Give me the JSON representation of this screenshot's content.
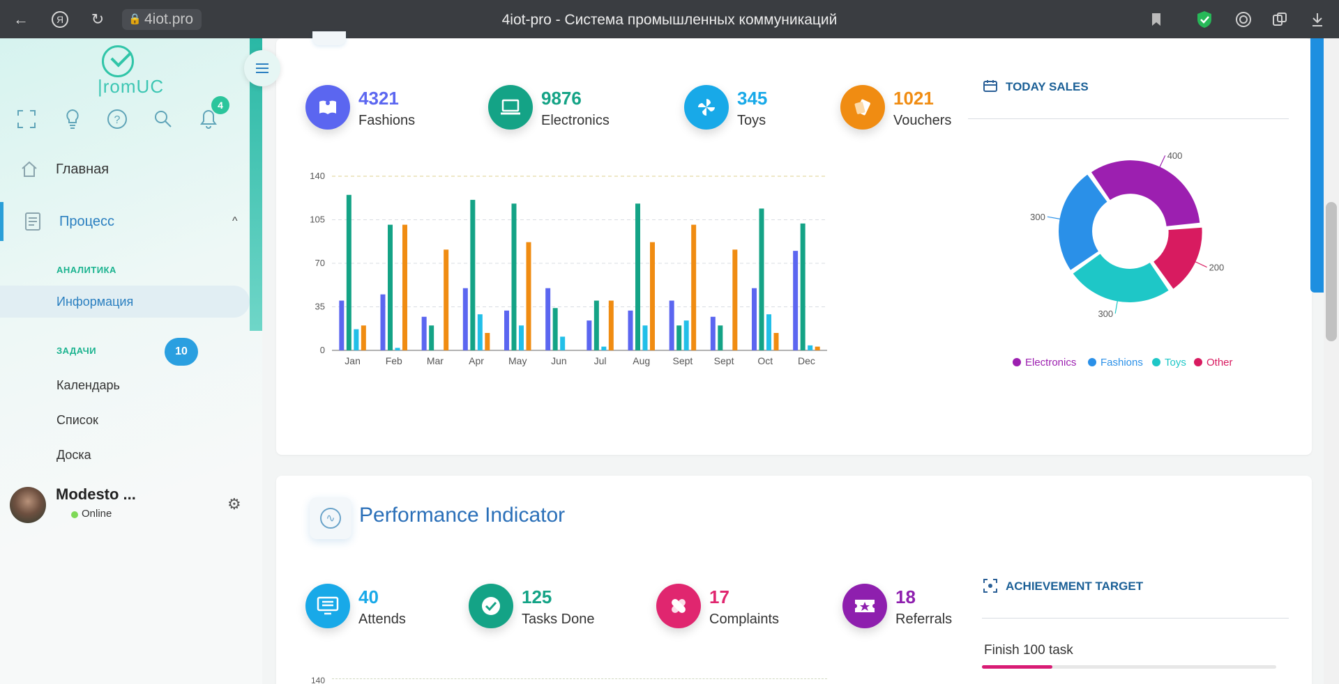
{
  "browser": {
    "url": "4iot.pro",
    "title": "4iot-pro - Система промышленных коммуникаций"
  },
  "sidebar": {
    "logo_text": "romUC",
    "notification_count": "4",
    "nav": [
      {
        "label": "Главная",
        "icon": "home-icon"
      },
      {
        "label": "Процесс",
        "icon": "document-icon",
        "active": true
      }
    ],
    "analytics_label": "АНАЛИТИКА",
    "analytics_items": [
      {
        "label": "Информация",
        "active": true
      }
    ],
    "tasks_label": "ЗАДАЧИ",
    "tasks_count": "10",
    "tasks_items": [
      {
        "label": "Календарь"
      },
      {
        "label": "Список"
      },
      {
        "label": "Доска"
      }
    ],
    "user": {
      "name": "Modesto ...",
      "status": "Online"
    }
  },
  "sales_stats": [
    {
      "value": "4321",
      "label": "Fashions",
      "color": "#5b66f0",
      "icon": "book-icon"
    },
    {
      "value": "9876",
      "label": "Electronics",
      "color": "#14a386",
      "icon": "laptop-icon"
    },
    {
      "value": "345",
      "label": "Toys",
      "color": "#18a9e8",
      "icon": "pinwheel-icon"
    },
    {
      "value": "1021",
      "label": "Vouchers",
      "color": "#f08c12",
      "icon": "voucher-icon"
    }
  ],
  "today_sales_title": "TODAY SALES",
  "performance": {
    "title": "Performance Indicator",
    "stats": [
      {
        "value": "40",
        "label": "Attends",
        "color": "#18a9e8",
        "icon": "monitor-icon"
      },
      {
        "value": "125",
        "label": "Tasks Done",
        "color": "#14a386",
        "icon": "check-icon"
      },
      {
        "value": "17",
        "label": "Complaints",
        "color": "#e0266f",
        "icon": "bandage-icon"
      },
      {
        "value": "18",
        "label": "Referrals",
        "color": "#8e1fae",
        "icon": "ticket-icon"
      }
    ],
    "achievement_title": "ACHIEVEMENT TARGET",
    "task_label": "Finish 100 task",
    "task_progress": 0.24,
    "second_chart_first_tick": "140"
  },
  "chart_data": [
    {
      "type": "bar",
      "categories": [
        "Jan",
        "Feb",
        "Mar",
        "Apr",
        "May",
        "Jun",
        "Jul",
        "Aug",
        "Sept",
        "Sept",
        "Oct",
        "Dec"
      ],
      "ylim": [
        0,
        140
      ],
      "yticks": [
        0,
        35,
        70,
        105,
        140
      ],
      "series": [
        {
          "color": "#5b66f0",
          "values": [
            40,
            45,
            27,
            50,
            32,
            50,
            24,
            32,
            40,
            27,
            50,
            80
          ]
        },
        {
          "color": "#14a386",
          "values": [
            125,
            101,
            20,
            121,
            118,
            34,
            40,
            118,
            20,
            20,
            114,
            102
          ]
        },
        {
          "color": "#22bfe8",
          "values": [
            17,
            2,
            0,
            29,
            20,
            11,
            3,
            20,
            24,
            0,
            29,
            4
          ]
        },
        {
          "color": "#f08c12",
          "values": [
            20,
            101,
            81,
            14,
            87,
            0,
            40,
            87,
            101,
            81,
            14,
            3
          ]
        }
      ]
    },
    {
      "type": "pie",
      "categories": [
        "Other",
        "Toys",
        "Fashions",
        "Electronics"
      ],
      "values": [
        200,
        300,
        300,
        400
      ],
      "colors": [
        "#d81b60",
        "#1ec7c7",
        "#2a90e8",
        "#9c1fb0"
      ],
      "data_labels": [
        "200",
        "300",
        "300",
        "400"
      ],
      "legend": [
        "Electronics",
        "Fashions",
        "Toys",
        "Other"
      ],
      "legend_colors": [
        "#9c1fb0",
        "#2a90e8",
        "#1ec7c7",
        "#d81b60"
      ],
      "legend_placement": "bottom"
    }
  ]
}
